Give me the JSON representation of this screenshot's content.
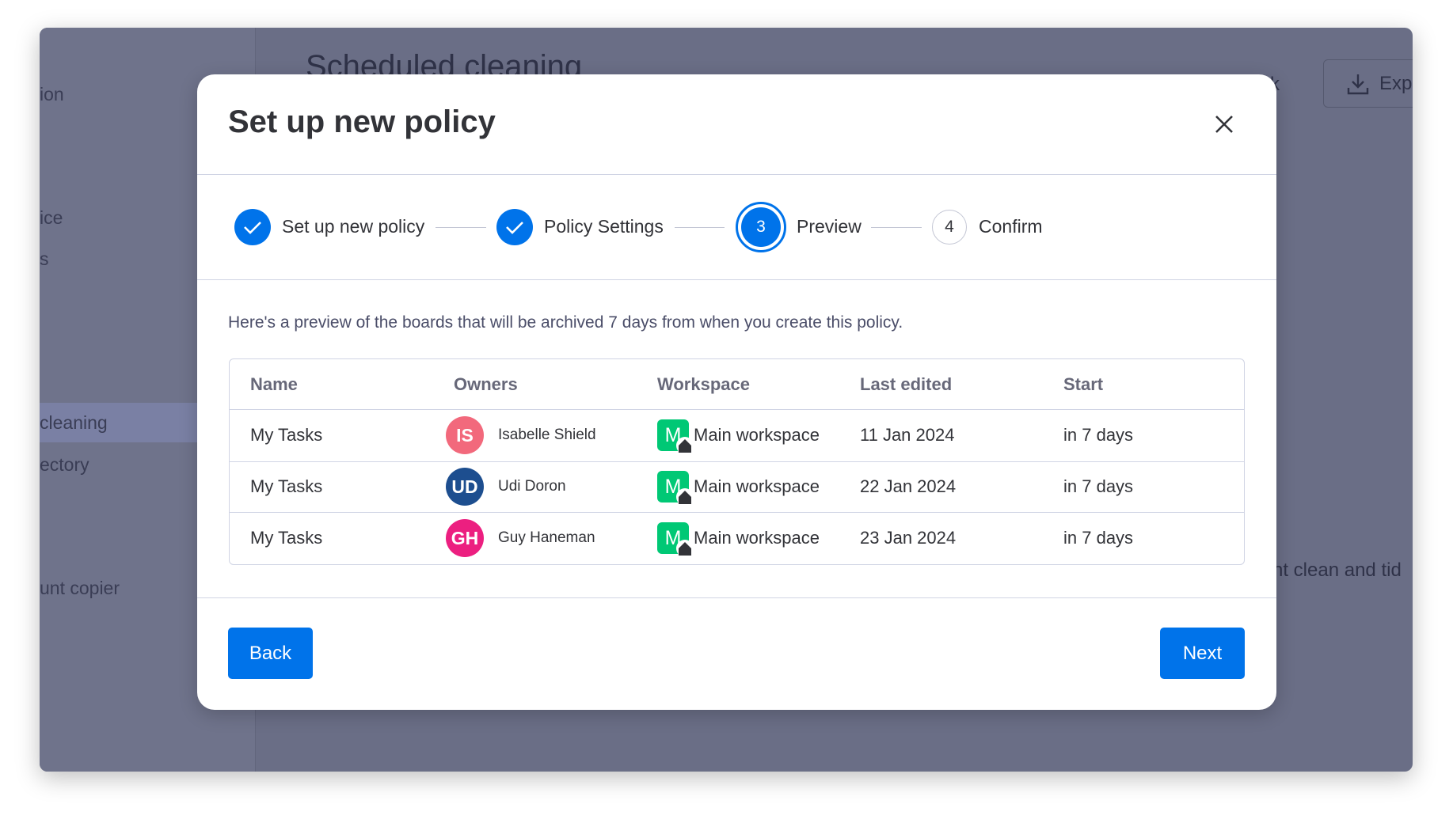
{
  "background": {
    "page_title": "Scheduled cleaning",
    "sidebar": [
      "ion",
      "ice",
      "s",
      "cleaning",
      "ectory",
      "unt copier"
    ],
    "active_sidebar": 3,
    "toolbar_fragment": "k",
    "export": "Exp",
    "snippet": "nt clean and tid"
  },
  "modal": {
    "title": "Set up new policy",
    "steps": [
      {
        "label": "Set up new policy",
        "status": "done"
      },
      {
        "label": "Policy Settings",
        "status": "done"
      },
      {
        "number": "3",
        "label": "Preview",
        "status": "current"
      },
      {
        "number": "4",
        "label": "Confirm",
        "status": "upcoming"
      }
    ],
    "description": "Here's a preview of the boards that will be archived 7 days from when you create this policy.",
    "table": {
      "columns": [
        "Name",
        "Owners",
        "Workspace",
        "Last edited",
        "Start"
      ],
      "rows": [
        {
          "name": "My Tasks",
          "owner_initials": "IS",
          "owner": "Isabelle Shield",
          "owner_color": "#f2697c",
          "workspace_initial": "M",
          "workspace": "Main workspace",
          "last_edited": "11 Jan 2024",
          "start": "in 7 days"
        },
        {
          "name": "My Tasks",
          "owner_initials": "UD",
          "owner": "Udi Doron",
          "owner_color": "#1d4e8f",
          "workspace_initial": "M",
          "workspace": "Main workspace",
          "last_edited": "22 Jan 2024",
          "start": "in 7 days"
        },
        {
          "name": "My Tasks",
          "owner_initials": "GH",
          "owner": "Guy Haneman",
          "owner_color": "#ec1f80",
          "workspace_initial": "M",
          "workspace": "Main workspace",
          "last_edited": "23 Jan 2024",
          "start": "in 7 days"
        }
      ]
    },
    "back": "Back",
    "next": "Next"
  }
}
